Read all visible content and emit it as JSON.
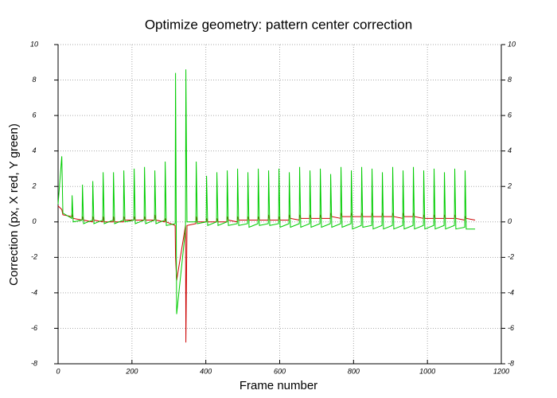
{
  "chart_data": {
    "type": "line",
    "title": "Optimize geometry: pattern center correction",
    "x_label": "Frame number",
    "y_label": "Correction (px, X red, Y green)",
    "x": [
      0,
      10,
      13,
      37,
      38,
      41,
      65,
      66,
      69,
      93,
      94,
      97,
      121,
      122,
      125,
      149,
      150,
      153,
      177,
      178,
      181,
      205,
      206,
      209,
      233,
      234,
      237,
      261,
      262,
      265,
      289,
      290,
      293,
      317,
      318,
      321,
      345,
      346,
      349,
      373,
      374,
      377,
      401,
      402,
      405,
      429,
      430,
      433,
      457,
      458,
      461,
      485,
      486,
      489,
      513,
      514,
      517,
      541,
      542,
      545,
      569,
      570,
      573,
      597,
      598,
      601,
      625,
      626,
      629,
      653,
      654,
      657,
      681,
      682,
      685,
      709,
      710,
      713,
      737,
      738,
      741,
      765,
      766,
      769,
      793,
      794,
      797,
      821,
      822,
      825,
      849,
      850,
      853,
      877,
      878,
      881,
      905,
      906,
      909,
      933,
      934,
      937,
      961,
      962,
      965,
      989,
      990,
      993,
      1017,
      1018,
      1021,
      1045,
      1046,
      1049,
      1073,
      1074,
      1077,
      1101,
      1102,
      1105,
      1129
    ],
    "series": [
      {
        "name": "X",
        "color": "#cc0000",
        "values": [
          0.9,
          0.7,
          0.4,
          0.3,
          0.4,
          0.2,
          0.1,
          0.3,
          0.1,
          0.0,
          0.3,
          0.1,
          0.0,
          0.3,
          0.0,
          0.0,
          0.3,
          0.0,
          0.0,
          0.3,
          0.1,
          0.1,
          0.3,
          0.1,
          0.1,
          0.3,
          0.1,
          0.1,
          0.4,
          0.1,
          0.0,
          0.2,
          0.0,
          -0.2,
          -2.0,
          -3.3,
          -0.2,
          -6.8,
          -0.2,
          -0.1,
          0.3,
          0.0,
          0.0,
          0.2,
          0.0,
          0.0,
          0.2,
          0.0,
          0.0,
          0.3,
          0.1,
          0.0,
          0.3,
          0.1,
          0.1,
          0.3,
          0.1,
          0.1,
          0.3,
          0.1,
          0.1,
          0.4,
          0.1,
          0.1,
          0.3,
          0.1,
          0.1,
          0.4,
          0.2,
          0.1,
          0.4,
          0.2,
          0.2,
          0.4,
          0.2,
          0.2,
          0.4,
          0.2,
          0.2,
          0.5,
          0.3,
          0.2,
          0.5,
          0.3,
          0.3,
          0.5,
          0.3,
          0.3,
          0.5,
          0.3,
          0.3,
          0.5,
          0.3,
          0.3,
          0.5,
          0.3,
          0.3,
          0.5,
          0.3,
          0.2,
          0.5,
          0.3,
          0.3,
          0.5,
          0.3,
          0.2,
          0.4,
          0.2,
          0.2,
          0.4,
          0.2,
          0.2,
          0.4,
          0.2,
          0.2,
          0.4,
          0.2,
          0.1,
          0.3,
          0.2,
          0.1
        ]
      },
      {
        "name": "Y",
        "color": "#00cc00",
        "values": [
          1.0,
          3.7,
          0.5,
          0.2,
          1.5,
          0.0,
          0.1,
          2.1,
          -0.1,
          0.1,
          2.3,
          -0.1,
          0.1,
          2.8,
          -0.1,
          0.1,
          2.8,
          -0.1,
          0.1,
          2.9,
          0.0,
          0.1,
          3.0,
          -0.1,
          0.1,
          3.1,
          -0.1,
          0.1,
          2.9,
          -0.1,
          0.1,
          3.4,
          -0.2,
          -0.1,
          8.4,
          -5.2,
          -0.4,
          8.6,
          0.0,
          0.0,
          3.4,
          -0.1,
          0.0,
          2.6,
          -0.2,
          0.0,
          2.8,
          -0.2,
          0.0,
          2.9,
          -0.2,
          -0.1,
          3.0,
          -0.2,
          -0.1,
          2.8,
          -0.3,
          -0.1,
          3.0,
          -0.2,
          -0.1,
          2.9,
          -0.2,
          -0.1,
          3.0,
          -0.3,
          -0.1,
          2.8,
          -0.3,
          -0.1,
          3.1,
          -0.3,
          -0.1,
          2.9,
          -0.3,
          -0.1,
          3.0,
          -0.3,
          -0.1,
          2.7,
          -0.3,
          -0.1,
          3.1,
          -0.3,
          -0.1,
          2.9,
          -0.4,
          -0.2,
          3.1,
          -0.3,
          -0.2,
          3.0,
          -0.4,
          -0.2,
          2.8,
          -0.4,
          -0.2,
          3.1,
          -0.4,
          -0.2,
          2.9,
          -0.4,
          -0.2,
          3.1,
          -0.4,
          -0.2,
          2.9,
          -0.4,
          -0.2,
          3.0,
          -0.4,
          -0.2,
          2.8,
          -0.4,
          -0.2,
          3.0,
          -0.4,
          -0.3,
          2.9,
          -0.4,
          -0.4
        ]
      }
    ],
    "xlim": [
      0,
      1200
    ],
    "xticks": [
      0,
      200,
      400,
      600,
      800,
      1000,
      1200
    ],
    "ylim": [
      -8,
      10
    ],
    "yticks": [
      -8,
      -6,
      -4,
      -2,
      0,
      2,
      4,
      6,
      8,
      10
    ],
    "grid": true
  }
}
